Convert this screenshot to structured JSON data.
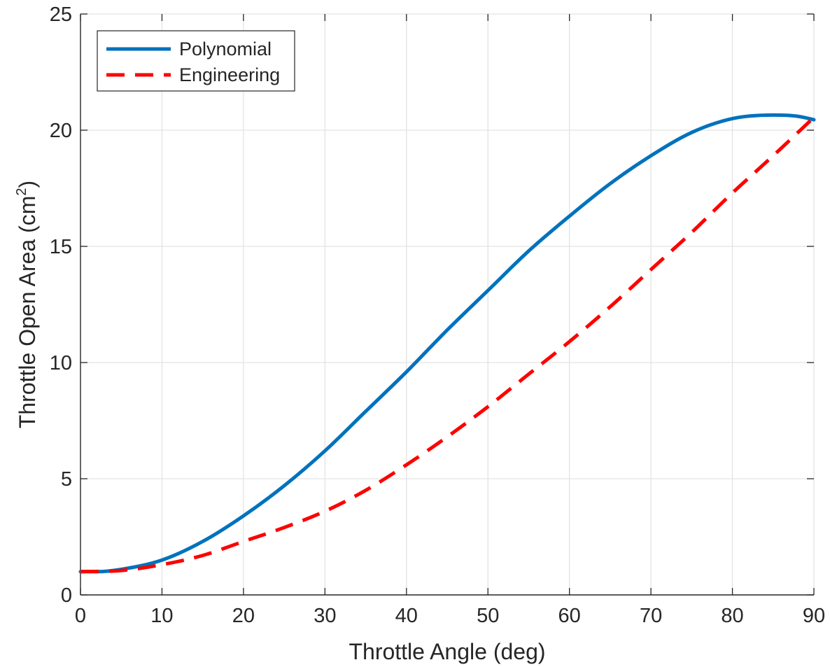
{
  "chart_data": {
    "type": "line",
    "title": "",
    "xlabel": "Throttle Angle (deg)",
    "ylabel_main": "Throttle Open Area (cm",
    "ylabel_sup": "2",
    "ylabel_end": ")",
    "xlim": [
      0,
      90
    ],
    "ylim": [
      0,
      25
    ],
    "xticks": [
      0,
      10,
      20,
      30,
      40,
      50,
      60,
      70,
      80,
      90
    ],
    "yticks": [
      0,
      5,
      10,
      15,
      20,
      25
    ],
    "grid": true,
    "legend_position": "top-left",
    "series": [
      {
        "name": "Polynomial",
        "color": "#0072BD",
        "style": "solid",
        "x": [
          0,
          2,
          5,
          10,
          15,
          20,
          25,
          30,
          35,
          40,
          45,
          50,
          55,
          60,
          65,
          70,
          75,
          80,
          85,
          88,
          90
        ],
        "y": [
          1.0,
          1.0,
          1.1,
          1.5,
          2.3,
          3.4,
          4.7,
          6.2,
          7.9,
          9.6,
          11.4,
          13.1,
          14.8,
          16.3,
          17.7,
          18.9,
          19.9,
          20.5,
          20.65,
          20.6,
          20.45
        ]
      },
      {
        "name": "Engineering",
        "color": "#FF0000",
        "style": "dashed",
        "x": [
          0,
          5,
          10,
          15,
          20,
          25,
          30,
          35,
          40,
          45,
          50,
          55,
          60,
          65,
          70,
          75,
          80,
          85,
          90
        ],
        "y": [
          1.0,
          1.05,
          1.3,
          1.7,
          2.3,
          2.9,
          3.6,
          4.5,
          5.6,
          6.8,
          8.1,
          9.5,
          10.9,
          12.4,
          14.0,
          15.6,
          17.3,
          18.9,
          20.55
        ]
      }
    ]
  }
}
